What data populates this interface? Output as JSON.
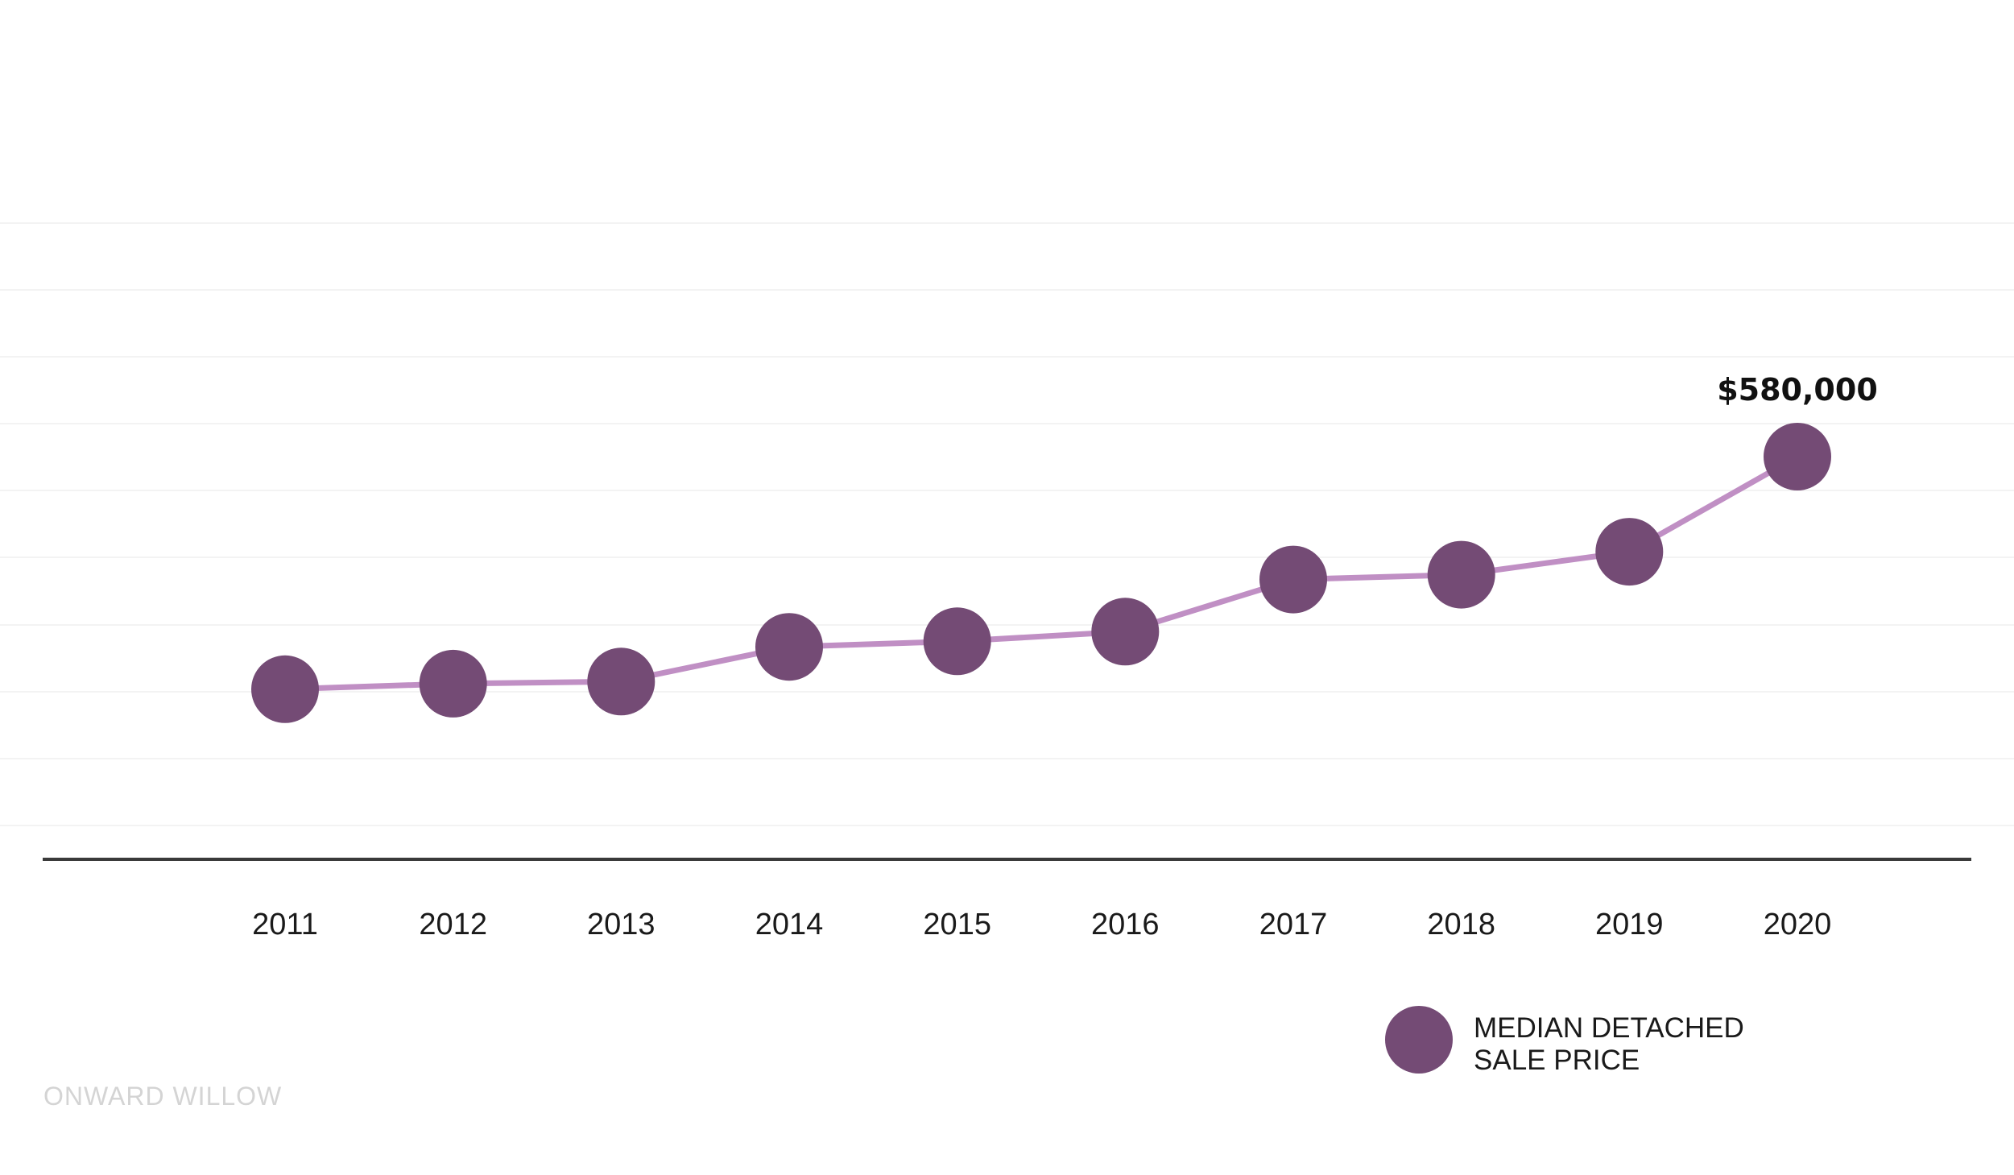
{
  "chart_data": {
    "type": "line",
    "title": "",
    "xlabel": "",
    "ylabel": "",
    "categories": [
      "2011",
      "2012",
      "2013",
      "2014",
      "2015",
      "2016",
      "2017",
      "2018",
      "2019",
      "2020"
    ],
    "series": [
      {
        "name": "MEDIAN DETACHED SALE PRICE",
        "values": [
          245000,
          253000,
          256000,
          306000,
          314000,
          328000,
          403000,
          410000,
          443000,
          580000
        ],
        "color": "#744b75",
        "line_color": "#c08fc4"
      }
    ],
    "data_labels": [
      {
        "category": "2020",
        "text": "$580,000"
      }
    ],
    "ylim": [
      0,
      1000000
    ],
    "grid": true,
    "legend": {
      "position": "bottom-right",
      "lines": [
        "MEDIAN DETACHED",
        "SALE PRICE"
      ]
    }
  },
  "watermark": "ONWARD WILLOW"
}
